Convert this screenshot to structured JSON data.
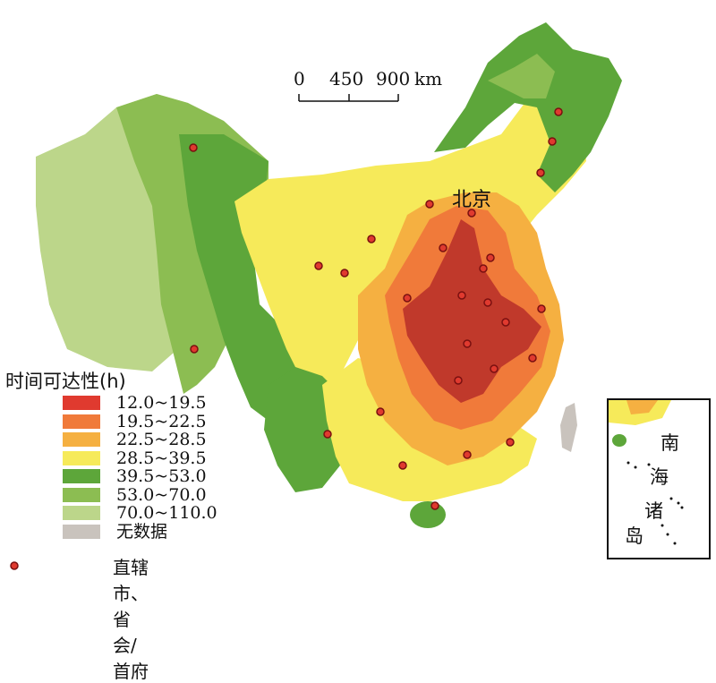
{
  "map": {
    "scale_bar": {
      "labels": [
        "0",
        "450",
        "900"
      ],
      "unit": "km"
    },
    "capital_label": "北京",
    "legend": {
      "title": "时间可达性(h)",
      "classes": [
        {
          "label": "12.0~19.5",
          "color": "#e03a2f"
        },
        {
          "label": "19.5~22.5",
          "color": "#f07a3a"
        },
        {
          "label": "22.5~28.5",
          "color": "#f5b041"
        },
        {
          "label": "28.5~39.5",
          "color": "#f6ea5a"
        },
        {
          "label": "39.5~53.0",
          "color": "#5da63a"
        },
        {
          "label": "53.0~70.0",
          "color": "#8cbd52"
        },
        {
          "label": "70.0~110.0",
          "color": "#bcd68a"
        },
        {
          "label": "无数据",
          "color": "#c9c3bd"
        }
      ],
      "capital_symbol_label": "直辖市、省会/首府"
    },
    "inset": {
      "label_chars": [
        "南",
        "海",
        "诸",
        "岛"
      ]
    }
  }
}
